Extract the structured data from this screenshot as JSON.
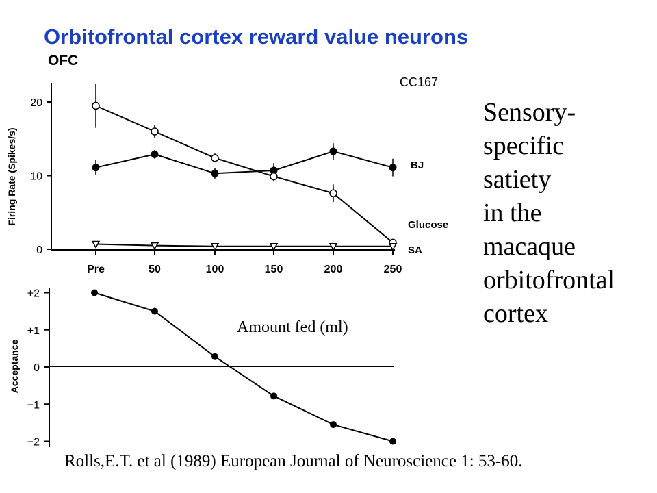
{
  "slide": {
    "title": "Orbitofrontal cortex reward value neurons",
    "side_text_lines": [
      "Sensory-",
      "specific",
      "satiety",
      "in the",
      "macaque",
      "orbitofrontal",
      "cortex"
    ],
    "citation": "Rolls,E.T. et al (1989) European Journal of Neuroscience 1: 53-60.",
    "title_color": "#1a3fc0"
  },
  "chart_data": [
    {
      "type": "line",
      "panel_label": "OFC",
      "cell_id": "CC167",
      "categories": [
        "Pre",
        "50",
        "100",
        "150",
        "200",
        "250"
      ],
      "xlabel": "Amount fed (ml)",
      "ylabel": "Firing Rate (Spikes/s)",
      "ylim": [
        0,
        22
      ],
      "yticks": [
        "0",
        "10",
        "20"
      ],
      "series": [
        {
          "name": "BJ",
          "marker": "filled-circle",
          "values": [
            11.1,
            12.9,
            10.3,
            10.7,
            13.3,
            11.1
          ],
          "errors": [
            1.0,
            0.6,
            0.7,
            1.0,
            1.1,
            1.2
          ]
        },
        {
          "name": "Glucose",
          "marker": "open-circle",
          "values": [
            19.5,
            16.0,
            12.4,
            9.9,
            7.6,
            0.9
          ],
          "errors": [
            3.0,
            0.9,
            0.6,
            0.7,
            1.2,
            0.5
          ]
        },
        {
          "name": "SA",
          "marker": "open-triangle",
          "values": [
            0.7,
            0.5,
            0.4,
            0.4,
            0.4,
            0.4
          ],
          "errors": [
            0,
            0,
            0,
            0,
            0,
            0
          ]
        }
      ]
    },
    {
      "type": "line",
      "categories": [
        "Pre",
        "50",
        "100",
        "150",
        "200",
        "250"
      ],
      "ylabel": "Acceptance",
      "ylim": [
        -2,
        2
      ],
      "yticks": [
        "+2",
        "+1",
        "0",
        "−1",
        "−2"
      ],
      "series": [
        {
          "marker": "filled-circle",
          "values": [
            2.0,
            1.5,
            0.28,
            -0.78,
            -1.55,
            -2.0
          ]
        }
      ]
    }
  ]
}
